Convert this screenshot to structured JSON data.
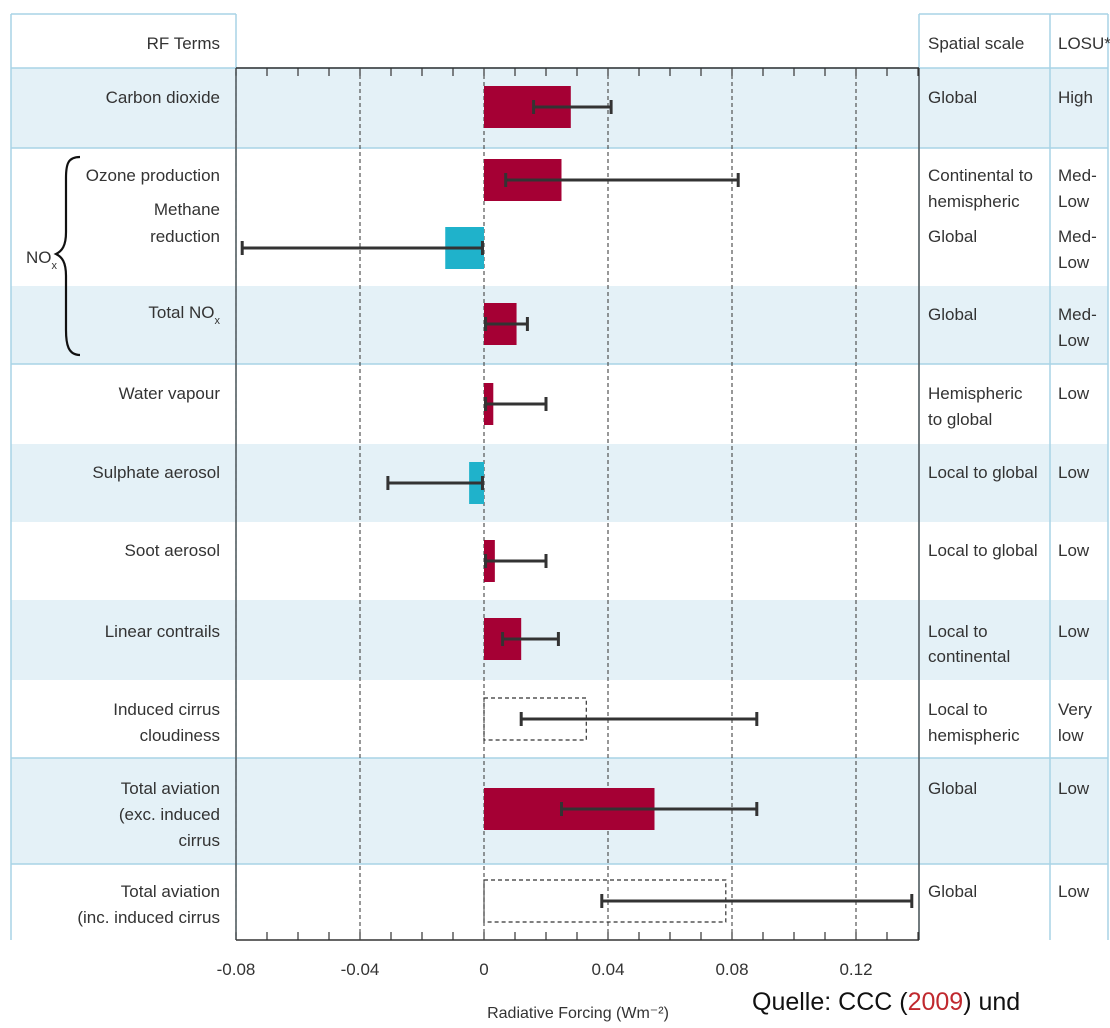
{
  "headers": {
    "rf_terms": "RF Terms",
    "spatial_scale": "Spatial scale",
    "losu": "LOSU*"
  },
  "nox_label": {
    "base": "NO",
    "sub": "x"
  },
  "rows": [
    {
      "label_lines": [
        "Carbon dioxide"
      ],
      "scale_lines": [
        "Global"
      ],
      "losu_lines": [
        "High"
      ],
      "shaded": true
    },
    {
      "label_lines": [
        "Ozone production"
      ],
      "scale_lines": [
        "Continental to",
        "hemispheric"
      ],
      "losu_lines": [
        "Med-",
        "Low"
      ],
      "shaded": false
    },
    {
      "label_lines": [
        "Methane",
        "reduction"
      ],
      "scale_lines": [
        "Global"
      ],
      "losu_lines": [
        "Med-",
        "Low"
      ],
      "shaded": false
    },
    {
      "label_lines": [
        "Total NOx"
      ],
      "scale_lines": [
        "Global"
      ],
      "losu_lines": [
        "Med-",
        "Low"
      ],
      "shaded": true
    },
    {
      "label_lines": [
        "Water vapour"
      ],
      "scale_lines": [
        "Hemispheric",
        "to global"
      ],
      "losu_lines": [
        "Low"
      ],
      "shaded": false
    },
    {
      "label_lines": [
        "Sulphate aerosol"
      ],
      "scale_lines": [
        "Local to global"
      ],
      "losu_lines": [
        "Low"
      ],
      "shaded": true
    },
    {
      "label_lines": [
        "Soot aerosol"
      ],
      "scale_lines": [
        "Local to global"
      ],
      "losu_lines": [
        "Low"
      ],
      "shaded": false
    },
    {
      "label_lines": [
        "Linear contrails"
      ],
      "scale_lines": [
        "Local to",
        "continental"
      ],
      "losu_lines": [
        "Low"
      ],
      "shaded": true
    },
    {
      "label_lines": [
        "Induced cirrus",
        "cloudiness"
      ],
      "scale_lines": [
        "Local to",
        "hemispheric"
      ],
      "losu_lines": [
        "Very",
        "low"
      ],
      "shaded": false
    },
    {
      "label_lines": [
        "Total aviation",
        "(exc. induced",
        "cirrus"
      ],
      "scale_lines": [
        "Global"
      ],
      "losu_lines": [
        "Low"
      ],
      "shaded": true
    },
    {
      "label_lines": [
        "Total aviation",
        "(inc. induced cirrus"
      ],
      "scale_lines": [
        "Global"
      ],
      "losu_lines": [
        "Low"
      ],
      "shaded": false
    }
  ],
  "chart_data": {
    "type": "bar",
    "orientation": "horizontal",
    "xlabel": "Radiative Forcing (Wm⁻²)",
    "xlim": [
      -0.08,
      0.14
    ],
    "xticks": [
      -0.08,
      -0.04,
      0,
      0.04,
      0.08,
      0.12
    ],
    "xtick_labels": [
      "-0.08",
      "-0.04",
      "0",
      "0.04",
      "0.08",
      "0.12"
    ],
    "grid": "vertical dashed lines at labeled ticks",
    "colors": {
      "positive": "#a50034",
      "negative": "#1fb2cb",
      "error_bar": "#333333",
      "row_shade": "#e4f1f7",
      "border": "#a8d4e6"
    },
    "bars": [
      {
        "term": "Carbon dioxide",
        "value": 0.028,
        "err_low": 0.016,
        "err_high": 0.041,
        "style": "positive"
      },
      {
        "term": "Ozone production",
        "value": 0.025,
        "err_low": 0.007,
        "err_high": 0.082,
        "style": "positive"
      },
      {
        "term": "Methane reduction",
        "value": -0.0125,
        "err_low": -0.078,
        "err_high": -0.0005,
        "style": "negative"
      },
      {
        "term": "Total NOx",
        "value": 0.0105,
        "err_low": 0.0005,
        "err_high": 0.014,
        "style": "positive"
      },
      {
        "term": "Water vapour",
        "value": 0.003,
        "err_low": 0.0005,
        "err_high": 0.02,
        "style": "positive"
      },
      {
        "term": "Sulphate aerosol",
        "value": -0.0048,
        "err_low": -0.031,
        "err_high": -0.0005,
        "style": "negative"
      },
      {
        "term": "Soot aerosol",
        "value": 0.0035,
        "err_low": 0.0005,
        "err_high": 0.02,
        "style": "positive"
      },
      {
        "term": "Linear contrails",
        "value": 0.012,
        "err_low": 0.006,
        "err_high": 0.024,
        "style": "positive"
      },
      {
        "term": "Induced cirrus cloudiness",
        "value": 0.033,
        "err_low": 0.012,
        "err_high": 0.088,
        "style": "dashed"
      },
      {
        "term": "Total aviation (exc. induced cirrus",
        "value": 0.055,
        "err_low": 0.025,
        "err_high": 0.088,
        "style": "positive"
      },
      {
        "term": "Total aviation (inc. induced cirrus",
        "value": 0.078,
        "err_low": 0.038,
        "err_high": 0.138,
        "style": "dashed"
      }
    ]
  },
  "source": {
    "prefix": "Quelle: CCC (",
    "year": "2009",
    "suffix": ") und"
  }
}
